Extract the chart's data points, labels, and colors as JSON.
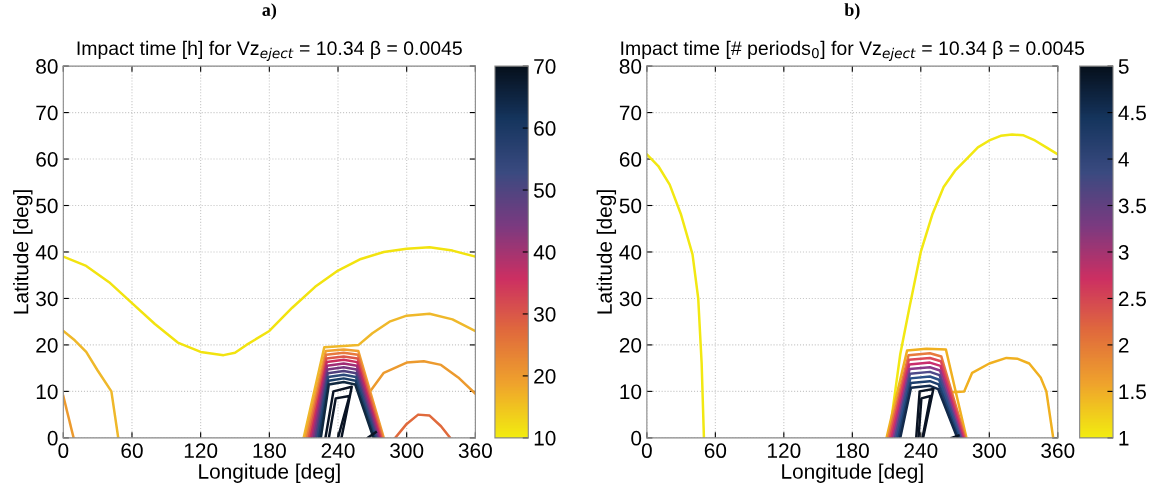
{
  "chart_data": [
    {
      "type": "line",
      "title": "Impact time [h] for Vz$_{eject}$ = 10.34 β = 0.0045",
      "annotations": [
        "a)"
      ],
      "xlabel": "Longitude [deg]",
      "ylabel": "Latitude [deg]",
      "xlim": [
        0,
        360
      ],
      "xticks": [
        0,
        60,
        120,
        180,
        240,
        300,
        360
      ],
      "ylim": [
        0,
        80
      ],
      "yticks": [
        0,
        10,
        20,
        30,
        40,
        50,
        60,
        70,
        80
      ],
      "grid": true,
      "clim": [
        10,
        70
      ],
      "cticks": [
        10,
        20,
        30,
        40,
        50,
        60,
        70
      ],
      "series": [
        {
          "color": "#f2e30f",
          "x": [
            0,
            20,
            40,
            60,
            80,
            100,
            120,
            140,
            150,
            160,
            180,
            200,
            220,
            240,
            260,
            280,
            300,
            320,
            340,
            360
          ],
          "values": [
            39,
            37,
            33.5,
            29,
            24.5,
            20.5,
            18.5,
            17.8,
            18.3,
            20,
            23,
            28,
            32.5,
            36,
            38.5,
            40,
            40.7,
            41,
            40.3,
            39
          ]
        },
        {
          "color": "#efb82a",
          "x": [
            0,
            10,
            20,
            30,
            42,
            48
          ],
          "values": [
            23,
            21,
            18.5,
            14.5,
            10,
            0
          ]
        },
        {
          "color": "#efb82a",
          "x": [
            210,
            228,
            258,
            270,
            285,
            300,
            320,
            340,
            360
          ],
          "values": [
            0,
            19.5,
            20,
            22.5,
            25,
            26.3,
            26.7,
            25.5,
            23
          ]
        },
        {
          "color": "#ec9a2e",
          "x": [
            0,
            9
          ],
          "values": [
            9,
            0
          ]
        },
        {
          "color": "#ec9a2e",
          "x": [
            268,
            280,
            300,
            315,
            330,
            345,
            360
          ],
          "values": [
            10,
            14,
            16.2,
            16.5,
            15.7,
            13,
            9.5
          ]
        },
        {
          "color": "#e06a3c",
          "x": [
            290,
            300,
            310,
            320,
            330,
            338
          ],
          "values": [
            0,
            3,
            5,
            4.8,
            2.5,
            0
          ]
        },
        {
          "color": "#f0a030",
          "x": [
            211.5,
            229.3,
            245,
            257.7,
            280
          ],
          "values": [
            0,
            18.7,
            19,
            18.7,
            0
          ]
        },
        {
          "color": "#e87a3e",
          "x": [
            213,
            229.6,
            245,
            257.4,
            279
          ],
          "values": [
            0,
            17.9,
            18.3,
            17.9,
            0
          ]
        },
        {
          "color": "#dc5648",
          "x": [
            214.5,
            229.9,
            245,
            257.1,
            278
          ],
          "values": [
            0,
            17.1,
            17.5,
            17.1,
            0
          ]
        },
        {
          "color": "#c92e5e",
          "x": [
            216,
            230.2,
            245,
            256.8,
            277
          ],
          "values": [
            0,
            16.3,
            16.8,
            16.3,
            0
          ]
        },
        {
          "color": "#a02d75",
          "x": [
            217.5,
            230.5,
            245,
            256.5,
            276
          ],
          "values": [
            0,
            15.5,
            16,
            15.5,
            0
          ]
        },
        {
          "color": "#77357e",
          "x": [
            219,
            230.8,
            245,
            256.2,
            275
          ],
          "values": [
            0,
            14.7,
            15.2,
            14.7,
            0
          ]
        },
        {
          "color": "#4f3f7e",
          "x": [
            220.5,
            231.1,
            245,
            255.9,
            274
          ],
          "values": [
            0,
            13.9,
            14.4,
            13.9,
            0
          ]
        },
        {
          "color": "#2b4a7a",
          "x": [
            222,
            231.4,
            245,
            255.6,
            273
          ],
          "values": [
            0,
            13.1,
            13.6,
            13.1,
            0
          ]
        },
        {
          "color": "#1a3d66",
          "x": [
            223.5,
            231.7,
            245,
            255.3,
            272
          ],
          "values": [
            0,
            12.3,
            12.8,
            12.3,
            0
          ]
        },
        {
          "color": "#10283f",
          "x": [
            225,
            232,
            245,
            255,
            271
          ],
          "values": [
            0,
            11.5,
            12,
            11.5,
            0
          ]
        },
        {
          "color": "#0a1424",
          "x": [
            229,
            236,
            252,
            243
          ],
          "values": [
            0,
            10,
            11,
            0
          ]
        },
        {
          "color": "#0a1424",
          "x": [
            232,
            238,
            250,
            240
          ],
          "values": [
            0,
            8.5,
            9,
            0
          ]
        },
        {
          "color": "#0a1424",
          "x": [
            266,
            273
          ],
          "values": [
            0,
            1.2
          ]
        }
      ]
    },
    {
      "type": "line",
      "title": "Impact time [# periods$_{0}$] for Vz$_{eject}$ = 10.34 β = 0.0045",
      "annotations": [
        "b)"
      ],
      "xlabel": "Longitude [deg]",
      "ylabel": "Latitude [deg]",
      "xlim": [
        0,
        360
      ],
      "xticks": [
        0,
        60,
        120,
        180,
        240,
        300,
        360
      ],
      "ylim": [
        0,
        80
      ],
      "yticks": [
        0,
        10,
        20,
        30,
        40,
        50,
        60,
        70,
        80
      ],
      "grid": true,
      "clim": [
        1,
        5
      ],
      "cticks": [
        1,
        1.5,
        2,
        2.5,
        3,
        3.5,
        4,
        4.5,
        5
      ],
      "series": [
        {
          "color": "#f2e812",
          "x": [
            0,
            10,
            20,
            30,
            40,
            45,
            48,
            50
          ],
          "values": [
            61,
            58.5,
            54.5,
            48,
            39.5,
            30,
            16,
            0
          ]
        },
        {
          "color": "#f2e812",
          "x": [
            212,
            222,
            230,
            240,
            250,
            260,
            270,
            280,
            290,
            300,
            310,
            320,
            330,
            340,
            350,
            360
          ],
          "values": [
            0,
            18,
            28,
            40,
            48,
            54,
            57.5,
            60,
            62.5,
            64,
            65,
            65.3,
            65.1,
            64,
            62.5,
            61
          ]
        },
        {
          "color": "#f0b020",
          "x": [
            210,
            228,
            245,
            262,
            280
          ],
          "values": [
            0,
            18.8,
            19.2,
            19,
            0
          ]
        },
        {
          "color": "#f0b020",
          "x": [
            265,
            278,
            285,
            300,
            315,
            325,
            335,
            345,
            350,
            356
          ],
          "values": [
            9.8,
            10,
            14,
            16,
            17.2,
            17,
            16,
            13,
            10,
            0
          ]
        },
        {
          "color": "#e87a3e",
          "x": [
            211.5,
            229.3,
            248,
            258,
            279
          ],
          "values": [
            0,
            17.8,
            18.2,
            17.5,
            0
          ]
        },
        {
          "color": "#dc4a58",
          "x": [
            213,
            229.6,
            248,
            257.6,
            278
          ],
          "values": [
            0,
            16.8,
            17.2,
            16.5,
            0
          ]
        },
        {
          "color": "#c92e6e",
          "x": [
            214.5,
            229.9,
            248,
            257.2,
            277
          ],
          "values": [
            0,
            15.8,
            16.2,
            15.5,
            0
          ]
        },
        {
          "color": "#8a3a8a",
          "x": [
            216,
            230.2,
            248,
            256.8,
            276
          ],
          "values": [
            0,
            14.8,
            15.2,
            14.5,
            0
          ]
        },
        {
          "color": "#4f4a8a",
          "x": [
            217.5,
            230.5,
            248,
            256.4,
            275
          ],
          "values": [
            0,
            13.8,
            14.2,
            13.5,
            0
          ]
        },
        {
          "color": "#2b5088",
          "x": [
            219,
            230.8,
            248,
            256,
            274
          ],
          "values": [
            0,
            12.8,
            13.2,
            12.5,
            0
          ]
        },
        {
          "color": "#1d3f6e",
          "x": [
            220.5,
            231.1,
            248,
            255.6,
            273
          ],
          "values": [
            0,
            11.8,
            12.2,
            11.5,
            0
          ]
        },
        {
          "color": "#12294a",
          "x": [
            222,
            231.4,
            248,
            255.2,
            272
          ],
          "values": [
            0,
            10.8,
            11.2,
            10.5,
            0
          ]
        },
        {
          "color": "#0a1424",
          "x": [
            236,
            239,
            251,
            242
          ],
          "values": [
            0,
            10,
            10.5,
            0
          ]
        },
        {
          "color": "#0a1424",
          "x": [
            238,
            240.5,
            248.5,
            241.5
          ],
          "values": [
            0,
            8.5,
            9,
            0
          ]
        },
        {
          "color": "#0a1424",
          "x": [
            267,
            273
          ],
          "values": [
            0,
            0.5
          ]
        }
      ]
    }
  ]
}
